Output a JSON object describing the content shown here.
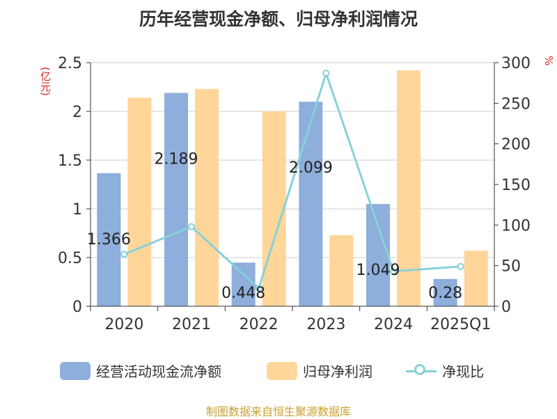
{
  "colors": {
    "cashflow": "#8eaedc",
    "netprofit": "#ffd699",
    "ratio": "#86d1d8",
    "grid": "#cccccc",
    "axis": "#333333",
    "unit": "#e02020",
    "source": "#c8a030"
  },
  "chart_data": {
    "type": "bar",
    "title": "历年经营现金净额、归母净利润情况",
    "categories": [
      "2020",
      "2021",
      "2022",
      "2023",
      "2024",
      "2025Q1"
    ],
    "y_left": {
      "unit": "(亿元)",
      "ticks": [
        "0",
        "0.5",
        "1",
        "1.5",
        "2",
        "2.5"
      ],
      "lim": [
        0,
        2.5
      ]
    },
    "y_right": {
      "unit": "%",
      "ticks": [
        "0",
        "50",
        "100",
        "150",
        "200",
        "250",
        "300"
      ],
      "lim": [
        0,
        300
      ]
    },
    "series": [
      {
        "name": "经营活动现金流净额",
        "type": "bar",
        "axis": "left",
        "values": [
          1.366,
          2.189,
          0.448,
          2.099,
          1.049,
          0.28
        ],
        "labels": [
          "1.366",
          "2.189",
          "0.448",
          "2.099",
          "1.049",
          "0.28"
        ]
      },
      {
        "name": "归母净利润",
        "type": "bar",
        "axis": "left",
        "values": [
          2.14,
          2.23,
          2.0,
          0.73,
          2.42,
          0.57
        ]
      },
      {
        "name": "净现比",
        "type": "line",
        "axis": "right",
        "values": [
          64,
          98,
          22,
          287,
          43,
          49
        ]
      }
    ],
    "grid": true,
    "legend_position": "bottom"
  },
  "source": "制图数据来自恒生聚源数据库"
}
